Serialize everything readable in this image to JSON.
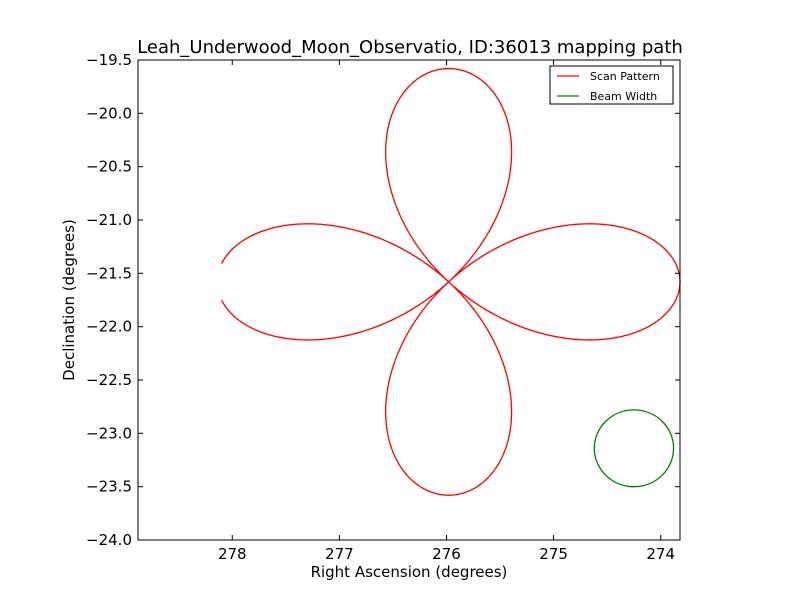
{
  "chart_data": {
    "type": "line",
    "title": "Leah_Underwood_Moon_Observatio, ID:36013 mapping path",
    "xlabel": "Right Ascension (degrees)",
    "ylabel": "Declination (degrees)",
    "xlim": [
      278.88,
      273.82
    ],
    "ylim": [
      -24.0,
      -19.5
    ],
    "x_inverted": true,
    "grid": false,
    "legend_position": "top-right",
    "xticks": [
      278,
      277,
      276,
      275,
      274
    ],
    "xtick_labels": [
      "278",
      "277",
      "276",
      "275",
      "274"
    ],
    "yticks": [
      -19.5,
      -20.0,
      -20.5,
      -21.0,
      -21.5,
      -22.0,
      -22.5,
      -23.0,
      -23.5,
      -24.0
    ],
    "ytick_labels": [
      "−19.5",
      "−20.0",
      "−20.5",
      "−21.0",
      "−21.5",
      "−22.0",
      "−22.5",
      "−23.0",
      "−23.5",
      "−24.0"
    ],
    "series": [
      {
        "name": "Scan Pattern",
        "color": "#ff0000",
        "shape": "four-petal rose",
        "center": {
          "ra": 275.98,
          "dec": -21.58
        },
        "ra_half_extent": 2.16,
        "dec_half_extent": 2.0,
        "gap_at_start_deg": 5
      },
      {
        "name": "Beam Width",
        "color": "#008000",
        "shape": "circle",
        "center": {
          "ra": 274.25,
          "dec": -23.14
        },
        "radius_ra": 0.37,
        "radius_dec": 0.36
      }
    ]
  }
}
